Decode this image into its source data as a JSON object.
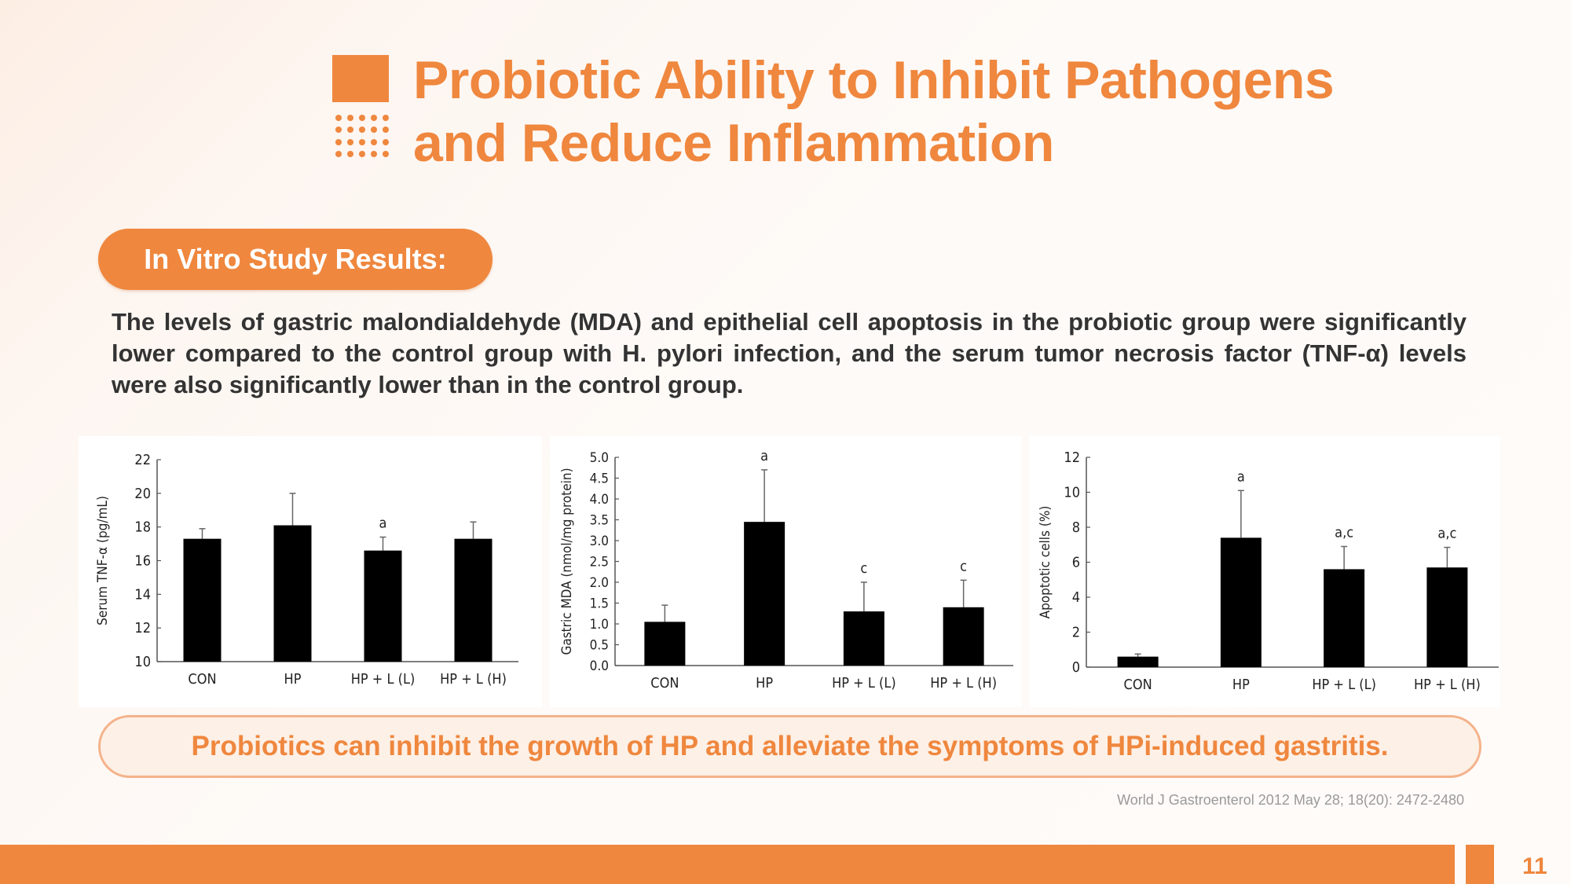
{
  "slide": {
    "title_line1": "Probiotic Ability to Inhibit Pathogens",
    "title_line2": "and Reduce Inflammation",
    "section_pill": "In Vitro Study Results:",
    "paragraph": "The levels of gastric malondialdehyde (MDA) and epithelial cell apoptosis in the probiotic group were significantly lower compared to the control group with H. pylori infection, and the serum tumor necrosis factor (TNF-α) levels were also significantly lower than in the control group.",
    "conclusion": "Probiotics can inhibit the growth of HP and alleviate the symptoms of HPi-induced gastritis.",
    "citation": "World J Gastroenterol 2012 May 28; 18(20): 2472-2480",
    "page_number": "11",
    "accent_color": "#ef873e"
  },
  "chart_data": [
    {
      "type": "bar",
      "title": "",
      "xlabel": "",
      "ylabel": "Serum TNF-α (pg/mL)",
      "categories": [
        "CON",
        "HP",
        "HP + L (L)",
        "HP + L (H)"
      ],
      "values": [
        17.3,
        18.1,
        16.6,
        17.3
      ],
      "error_upper": [
        17.9,
        20.0,
        17.4,
        18.3
      ],
      "annotations": [
        "",
        "",
        "a",
        ""
      ],
      "ylim": [
        10,
        22
      ],
      "yticks": [
        10,
        12,
        14,
        16,
        18,
        20,
        22
      ],
      "ytick_labels": [
        "10",
        "12",
        "14",
        "16",
        "18",
        "20",
        "22"
      ],
      "grid": false
    },
    {
      "type": "bar",
      "title": "",
      "xlabel": "",
      "ylabel": "Gastric MDA (nmol/mg protein)",
      "categories": [
        "CON",
        "HP",
        "HP + L (L)",
        "HP + L (H)"
      ],
      "values": [
        1.05,
        3.45,
        1.3,
        1.4
      ],
      "error_upper": [
        1.45,
        4.7,
        2.0,
        2.05
      ],
      "annotations": [
        "",
        "a",
        "c",
        "c"
      ],
      "ylim": [
        0,
        5
      ],
      "yticks": [
        0,
        0.5,
        1,
        1.5,
        2,
        2.5,
        3,
        3.5,
        4,
        4.5,
        5
      ],
      "ytick_labels": [
        "0.0",
        "0.5",
        "1.0",
        "1.5",
        "2.0",
        "2.5",
        "3.0",
        "3.5",
        "4.0",
        "4.5",
        "5.0"
      ],
      "grid": false
    },
    {
      "type": "bar",
      "title": "",
      "xlabel": "",
      "ylabel": "Apoptotic cells (%)",
      "categories": [
        "CON",
        "HP",
        "HP + L (L)",
        "HP + L (H)"
      ],
      "values": [
        0.6,
        7.4,
        5.6,
        5.7
      ],
      "error_upper": [
        0.75,
        10.1,
        6.9,
        6.85
      ],
      "annotations": [
        "",
        "a",
        "a,c",
        "a,c"
      ],
      "ylim": [
        0,
        12
      ],
      "yticks": [
        0,
        2,
        4,
        6,
        8,
        10,
        12
      ],
      "ytick_labels": [
        "0",
        "2",
        "4",
        "6",
        "8",
        "10",
        "12"
      ],
      "grid": false
    }
  ]
}
